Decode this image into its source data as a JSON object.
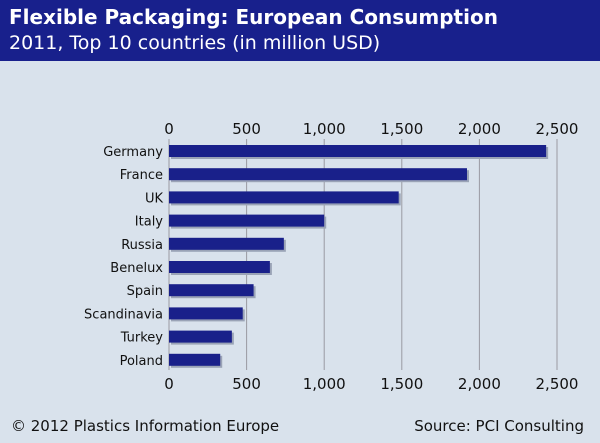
{
  "header": {
    "title": "Flexible Packaging: European Consumption",
    "subtitle": "2011, Top 10 countries (in million USD)"
  },
  "footer": {
    "copyright": "© 2012 Plastics Information Europe",
    "source": "Source: PCI Consulting"
  },
  "colors": {
    "header_bg": "#18208c",
    "background": "#d9e2ec",
    "bar": "#19208a",
    "grid": "#9a9aa2",
    "bar_shadow": "#9aa3b6"
  },
  "chart_data": {
    "type": "bar",
    "orientation": "horizontal",
    "categories": [
      "Germany",
      "France",
      "UK",
      "Italy",
      "Russia",
      "Benelux",
      "Spain",
      "Scandinavia",
      "Turkey",
      "Poland"
    ],
    "values": [
      2430,
      1920,
      1480,
      1000,
      740,
      650,
      545,
      475,
      405,
      330
    ],
    "xlim": [
      0,
      2500
    ],
    "xticks": [
      0,
      500,
      1000,
      1500,
      2000,
      2500
    ],
    "xtick_labels": [
      "0",
      "500",
      "1,000",
      "1,500",
      "2,000",
      "2,500"
    ],
    "xaxis_labels_position": "top and bottom",
    "grid": true
  }
}
